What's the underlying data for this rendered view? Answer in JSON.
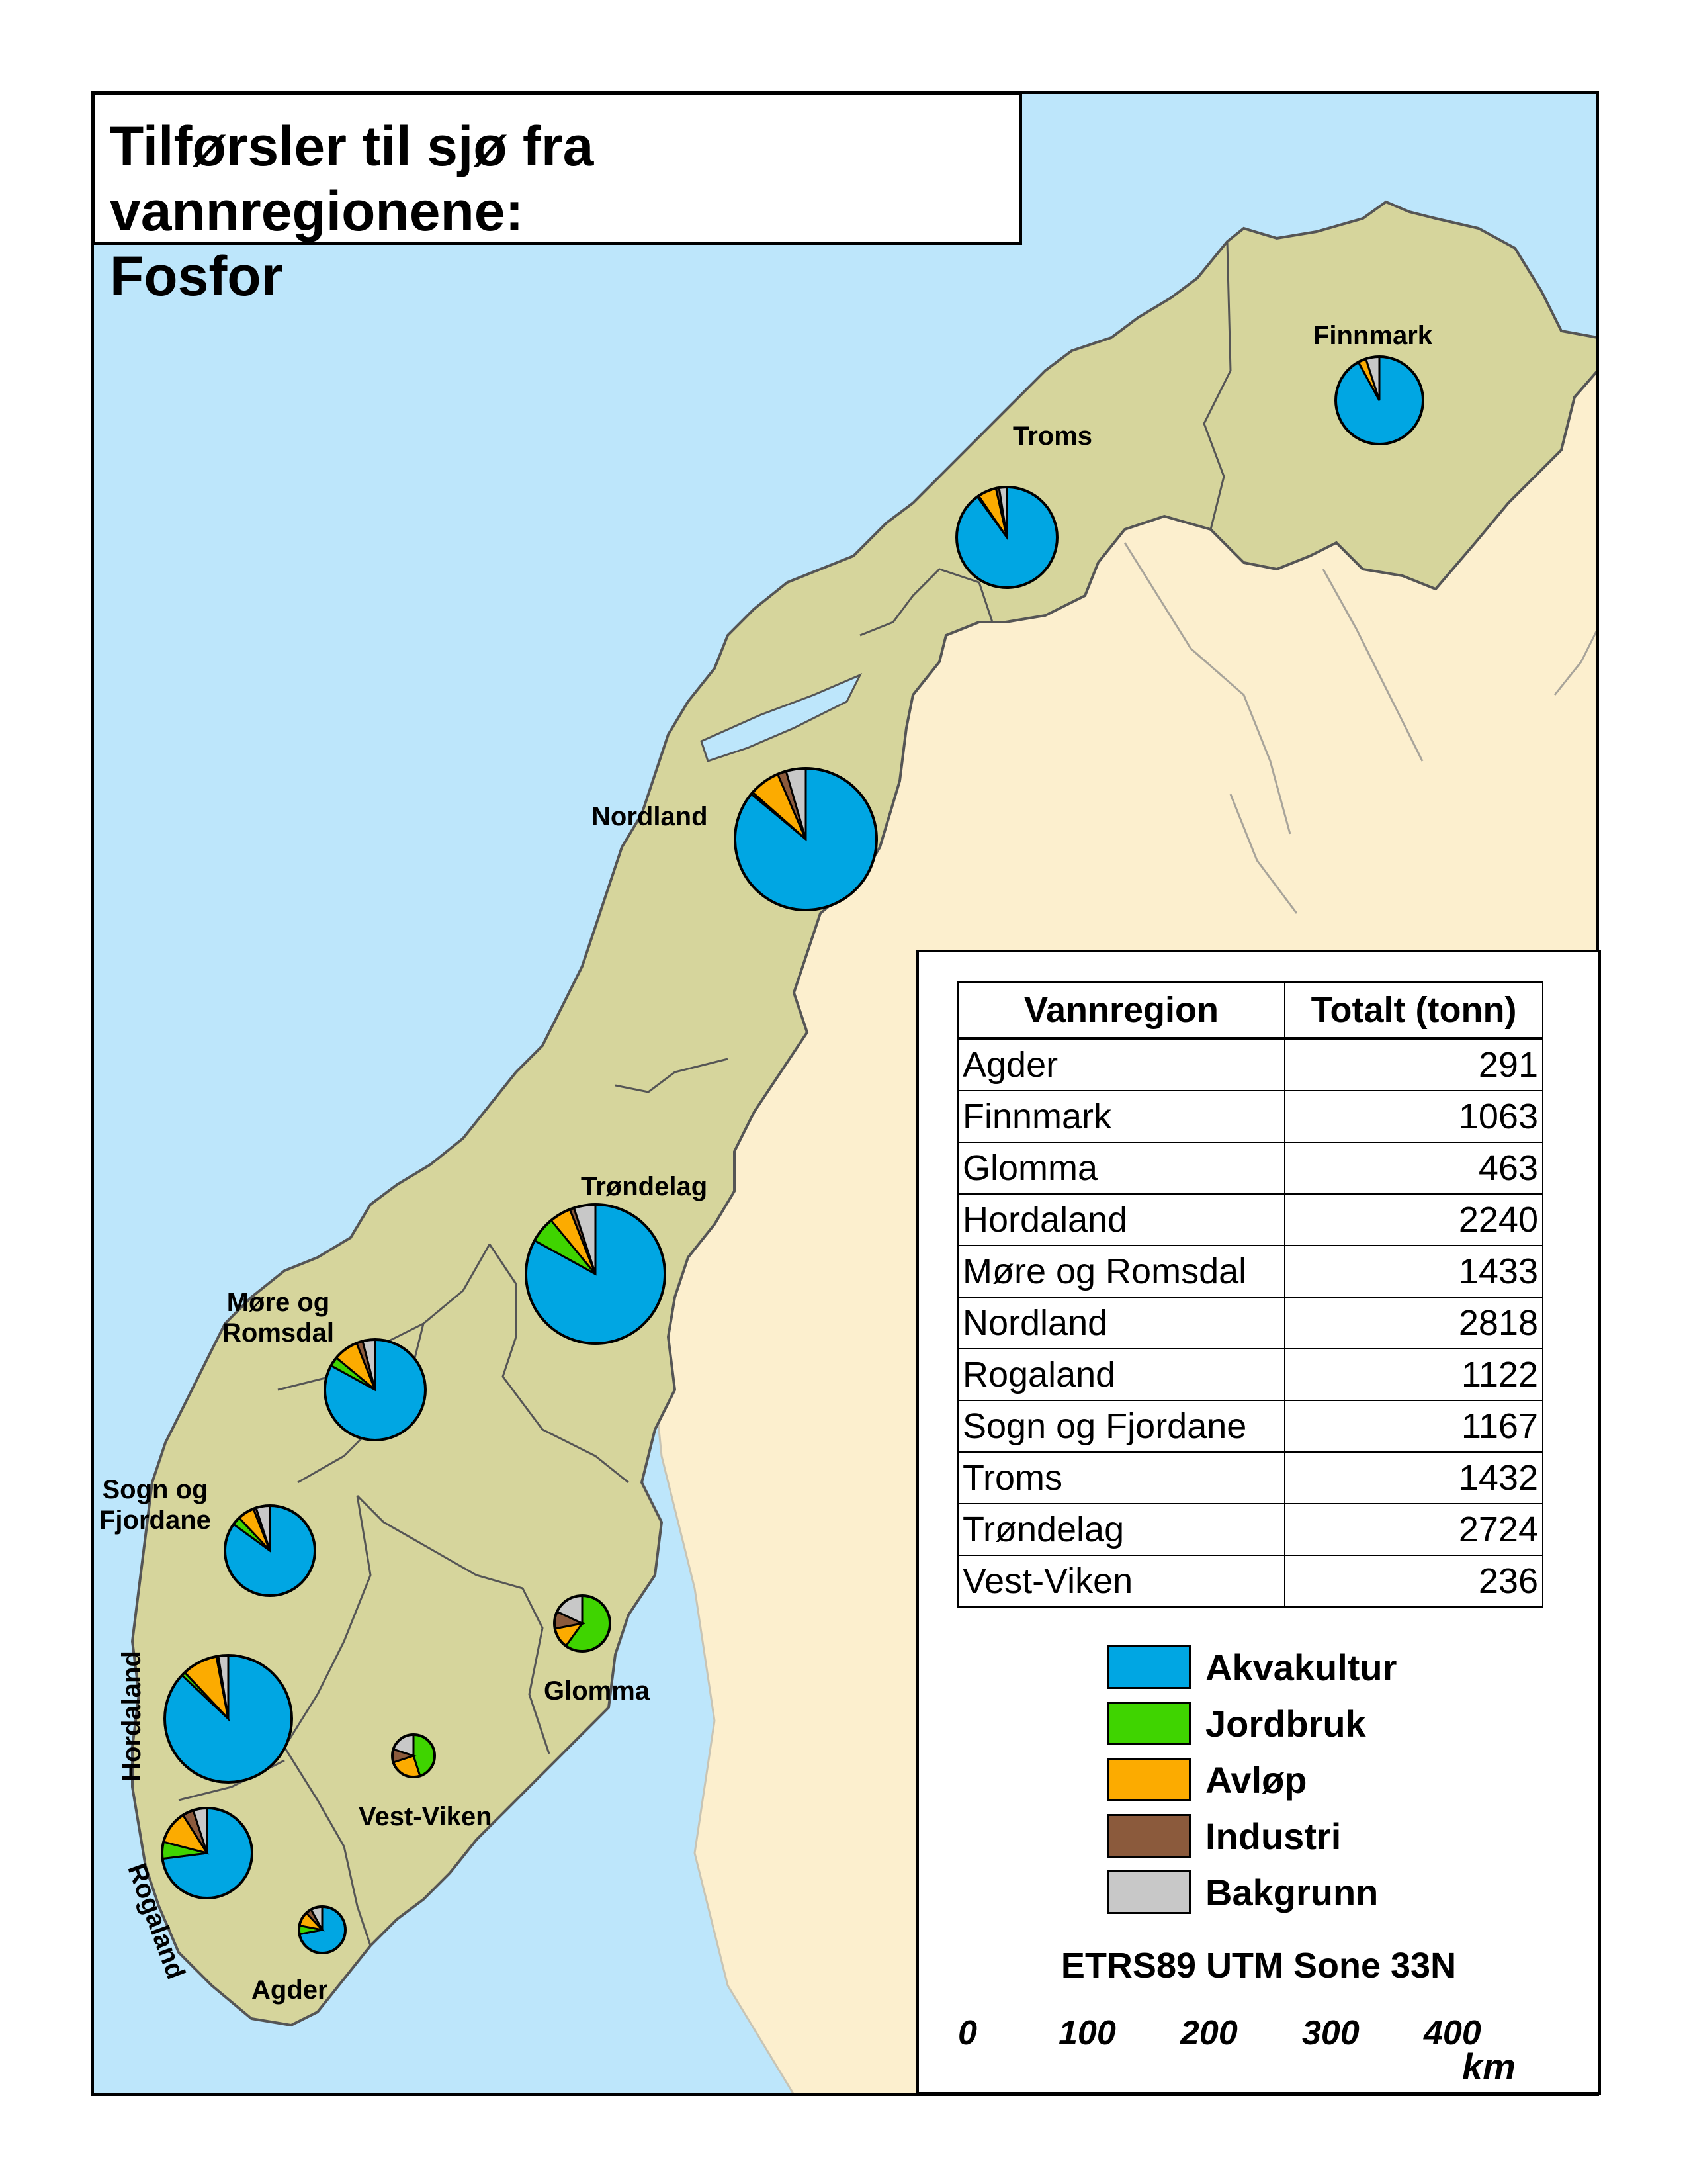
{
  "title": {
    "line1": "Tilførsler til sjø fra vannregionene:",
    "line2": "Fosfor"
  },
  "colors": {
    "sea": "#bde6fb",
    "norway": "#d6d59c",
    "neighbour": "#fcefce",
    "akvakultur": "#00a6e3",
    "jordbruk": "#3fd400",
    "avlop": "#fcab00",
    "industri": "#8b5a3c",
    "bakgrunn": "#c8c8c8"
  },
  "regions": {
    "finnmark": "Finnmark",
    "troms": "Troms",
    "nordland": "Nordland",
    "trondelag": "Trøndelag",
    "more_line1": "Møre og",
    "more_line2": "Romsdal",
    "sogn_line1": "Sogn og",
    "sogn_line2": "Fjordane",
    "hordaland": "Hordaland",
    "rogaland": "Rogaland",
    "glomma": "Glomma",
    "vestviken": "Vest-Viken",
    "agder": "Agder"
  },
  "table": {
    "header_region": "Vannregion",
    "header_total": "Totalt (tonn)",
    "rows": [
      {
        "name": "Agder",
        "total": "291"
      },
      {
        "name": "Finnmark",
        "total": "1063"
      },
      {
        "name": "Glomma",
        "total": "463"
      },
      {
        "name": "Hordaland",
        "total": "2240"
      },
      {
        "name": "Møre og Romsdal",
        "total": "1433"
      },
      {
        "name": "Nordland",
        "total": "2818"
      },
      {
        "name": "Rogaland",
        "total": "1122"
      },
      {
        "name": "Sogn og Fjordane",
        "total": "1167"
      },
      {
        "name": "Troms",
        "total": "1432"
      },
      {
        "name": "Trøndelag",
        "total": "2724"
      },
      {
        "name": "Vest-Viken",
        "total": "236"
      }
    ]
  },
  "legend": {
    "akvakultur": "Akvakultur",
    "jordbruk": "Jordbruk",
    "avlop": "Avløp",
    "industri": "Industri",
    "bakgrunn": "Bakgrunn"
  },
  "projection": "ETRS89 UTM Sone 33N",
  "scale": {
    "ticks": [
      "0",
      "100",
      "200",
      "300",
      "400"
    ],
    "unit": "km"
  },
  "chart_data": {
    "type": "pie",
    "categories": [
      "Akvakultur",
      "Jordbruk",
      "Avløp",
      "Industri",
      "Bakgrunn"
    ],
    "pies": [
      {
        "region": "Finnmark",
        "values": [
          92,
          0,
          3,
          0,
          5
        ]
      },
      {
        "region": "Troms",
        "values": [
          90,
          0.5,
          6,
          1,
          2.5
        ]
      },
      {
        "region": "Nordland",
        "values": [
          86,
          0.5,
          7,
          2,
          4.5
        ]
      },
      {
        "region": "Trøndelag",
        "values": [
          83,
          6,
          5,
          1,
          5
        ]
      },
      {
        "region": "Møre og Romsdal",
        "values": [
          83,
          3,
          8,
          2,
          4
        ]
      },
      {
        "region": "Sogn og Fjordane",
        "values": [
          85,
          3,
          6,
          1,
          5
        ]
      },
      {
        "region": "Hordaland",
        "values": [
          87,
          1,
          9,
          0.5,
          2.5
        ]
      },
      {
        "region": "Rogaland",
        "values": [
          73,
          6,
          12,
          4,
          5
        ]
      },
      {
        "region": "Glomma",
        "values": [
          0,
          60,
          12,
          10,
          18
        ]
      },
      {
        "region": "Vest-Viken",
        "values": [
          0,
          45,
          25,
          10,
          20
        ]
      },
      {
        "region": "Agder",
        "values": [
          72,
          6,
          10,
          4,
          8
        ]
      }
    ]
  }
}
